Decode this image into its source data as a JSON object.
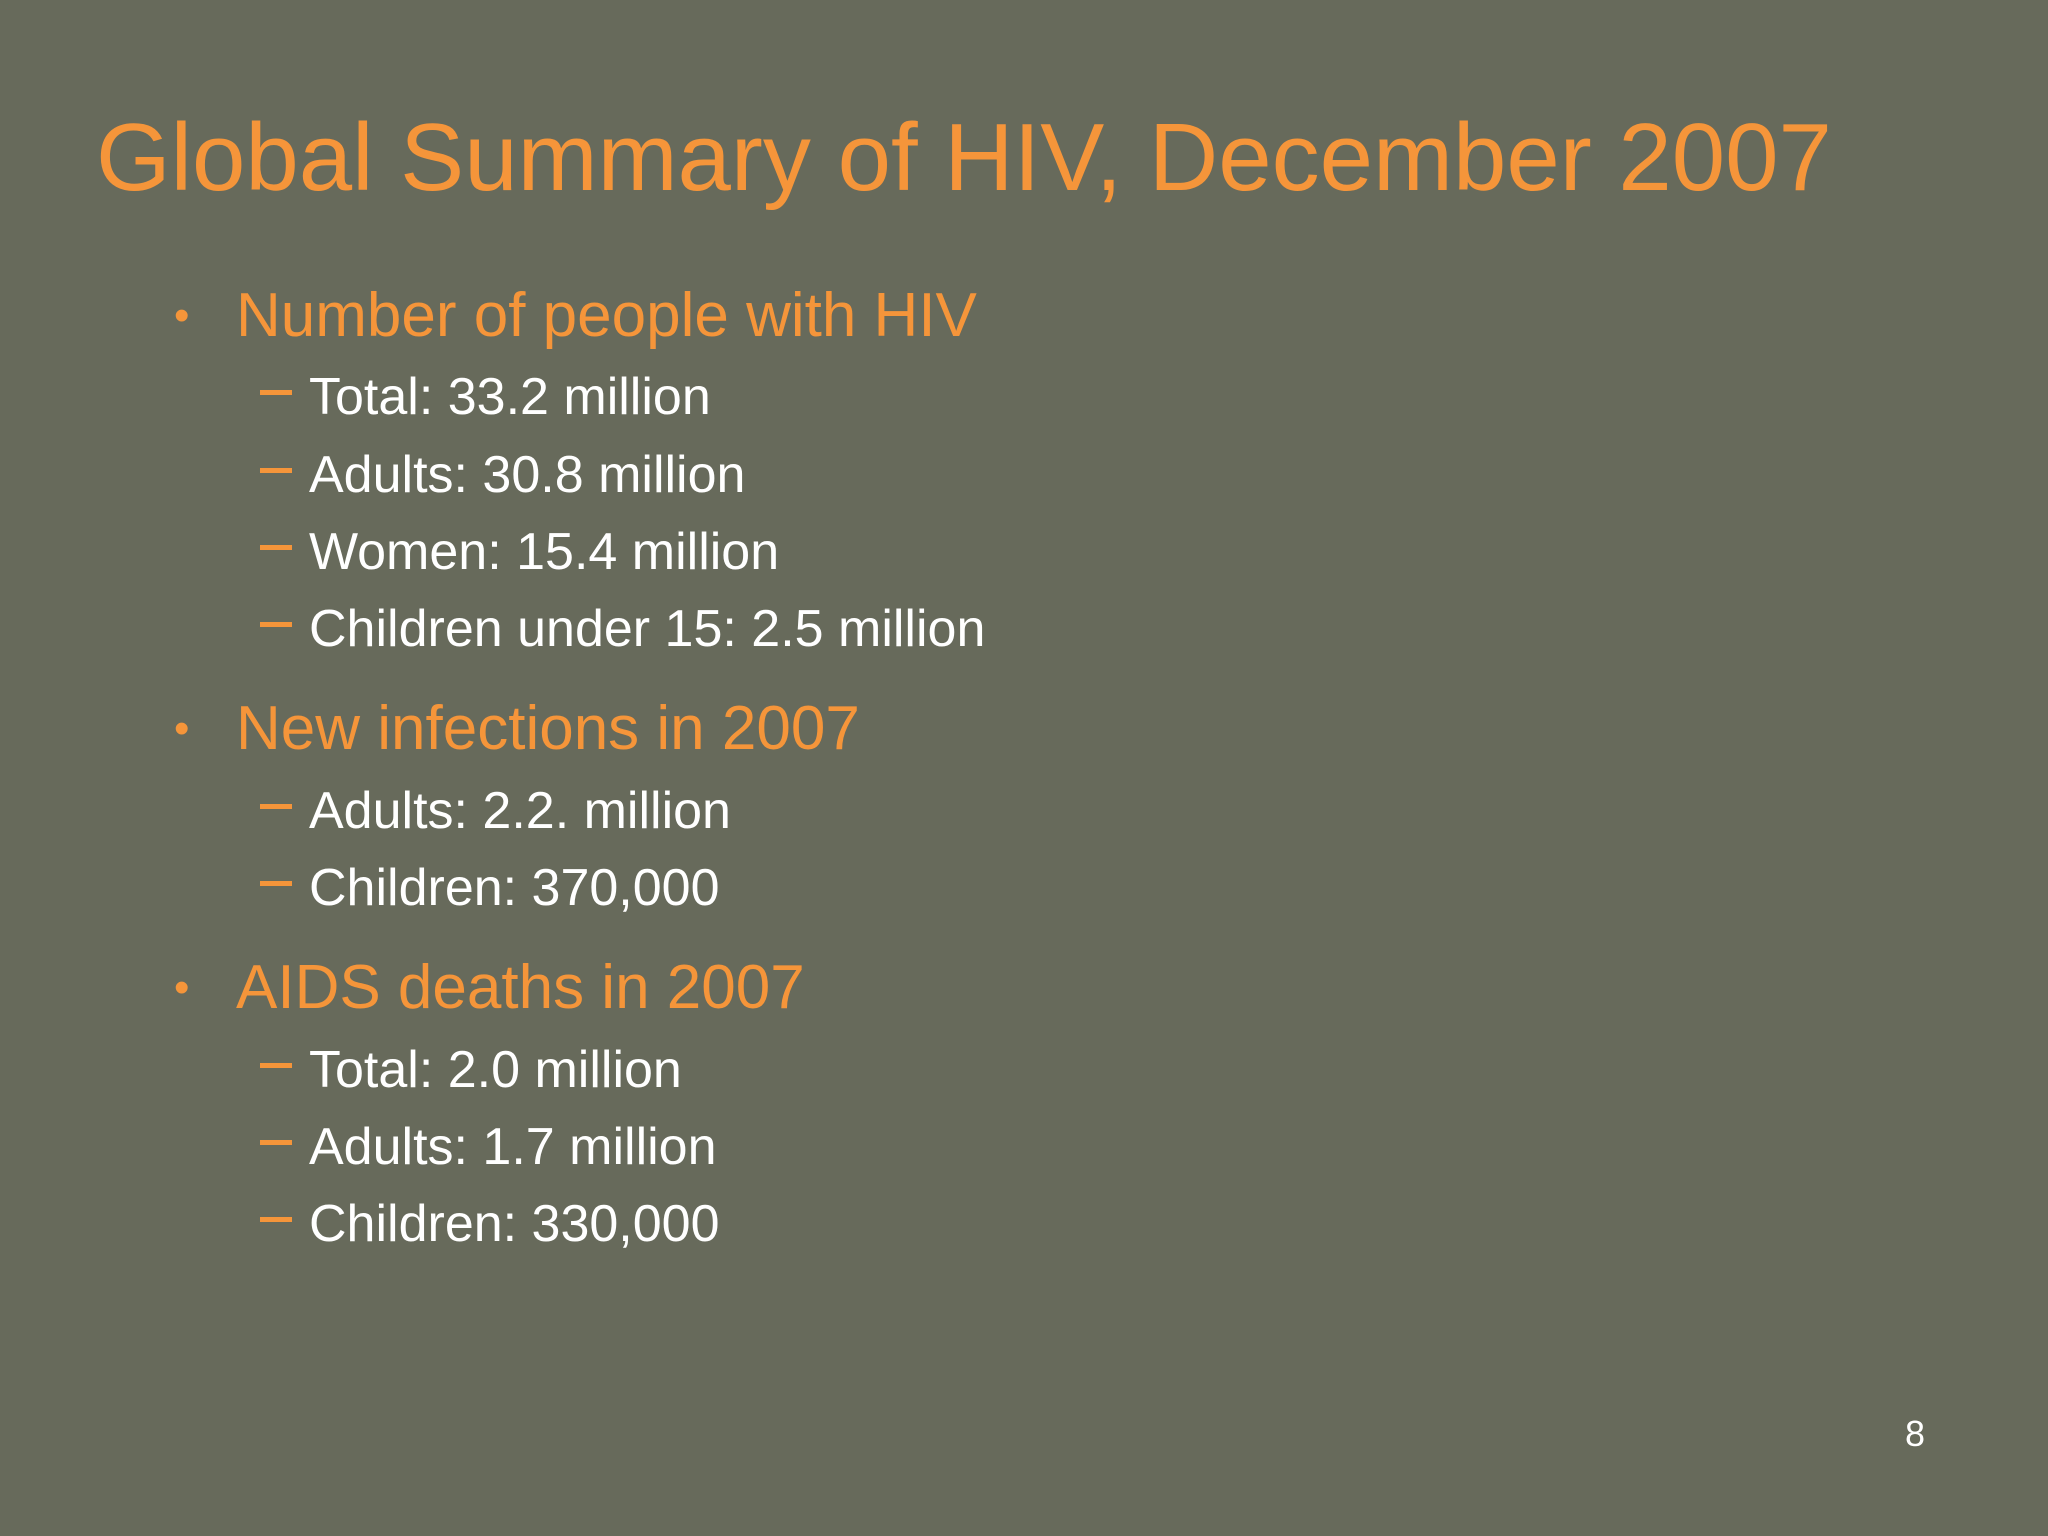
{
  "slide": {
    "title": "Global Summary of HIV, December 2007",
    "page_number": "8",
    "colors": {
      "background": "#676a5b",
      "accent": "#f5953a",
      "text": "#ffffff"
    },
    "sections": [
      {
        "label": "Number of people with HIV",
        "items": [
          "Total: 33.2 million",
          "Adults: 30.8 million",
          "Women: 15.4 million",
          "Children under 15: 2.5 million"
        ]
      },
      {
        "label": "New infections in 2007",
        "items": [
          "Adults: 2.2. million",
          "Children: 370,000"
        ]
      },
      {
        "label": "AIDS deaths in 2007",
        "items": [
          "Total: 2.0 million",
          "Adults: 1.7 million",
          "Children: 330,000"
        ]
      }
    ]
  }
}
